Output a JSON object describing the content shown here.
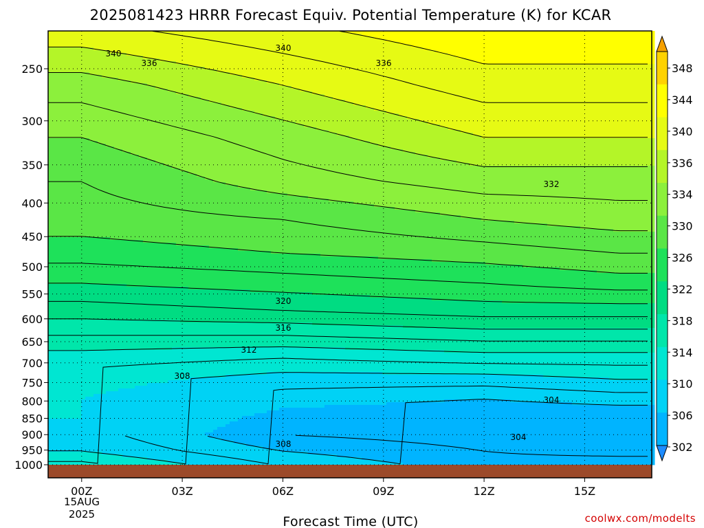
{
  "chart_data": {
    "type": "contour",
    "title": "2025081423 HRRR Forecast Equiv. Potential Temperature (K) for KCAR",
    "xlabel": "Forecast Time (UTC)",
    "ylabel": "",
    "x_ticks": [
      "00Z",
      "03Z",
      "06Z",
      "09Z",
      "12Z",
      "15Z"
    ],
    "x_date_line1": "15AUG",
    "x_date_line2": "2025",
    "xlim_hours": [
      -1,
      17
    ],
    "y_scale": "log-pressure",
    "y_ticks": [
      250,
      300,
      350,
      400,
      450,
      500,
      550,
      600,
      650,
      700,
      750,
      800,
      850,
      900,
      950,
      1000
    ],
    "grid": "dotted",
    "colorbar": {
      "labels": [
        302,
        306,
        310,
        314,
        318,
        322,
        326,
        330,
        334,
        336,
        340,
        344,
        348
      ],
      "colors": [
        "#1e8cff",
        "#00b4ff",
        "#00d2f5",
        "#00e6d2",
        "#00e6aa",
        "#00dc82",
        "#1ee15a",
        "#5ae646",
        "#8cf03c",
        "#b4f528",
        "#e6fa14",
        "#ffff00",
        "#ffd200",
        "#f5a000"
      ]
    },
    "contour_labels": [
      "340",
      "340",
      "336",
      "336",
      "332",
      "320",
      "316",
      "312",
      "308",
      "308",
      "304",
      "304"
    ],
    "theta_e_profile": {
      "levels_hpa": [
        1000,
        950,
        900,
        850,
        800,
        750,
        700,
        650,
        600,
        550,
        500,
        450,
        400,
        350,
        300,
        250,
        200
      ],
      "hour_00Z": [
        313,
        313,
        310,
        309,
        310,
        310,
        311,
        313,
        316,
        319,
        322,
        325,
        327,
        328,
        330,
        333,
        338
      ],
      "hour_06Z": [
        309,
        308,
        306,
        304,
        305,
        307,
        309,
        312,
        316,
        320,
        323,
        326,
        328,
        331,
        333,
        336,
        340
      ],
      "hour_12Z": [
        306,
        305,
        304,
        303,
        304,
        306,
        309,
        313,
        317,
        321,
        324,
        327,
        330,
        333,
        336,
        339,
        342
      ],
      "hour_16Z": [
        308,
        306,
        303,
        303,
        304,
        307,
        310,
        313,
        317,
        321,
        325,
        328,
        331,
        333,
        336,
        339,
        342
      ]
    },
    "credit": "coolwx.com/modelts"
  }
}
